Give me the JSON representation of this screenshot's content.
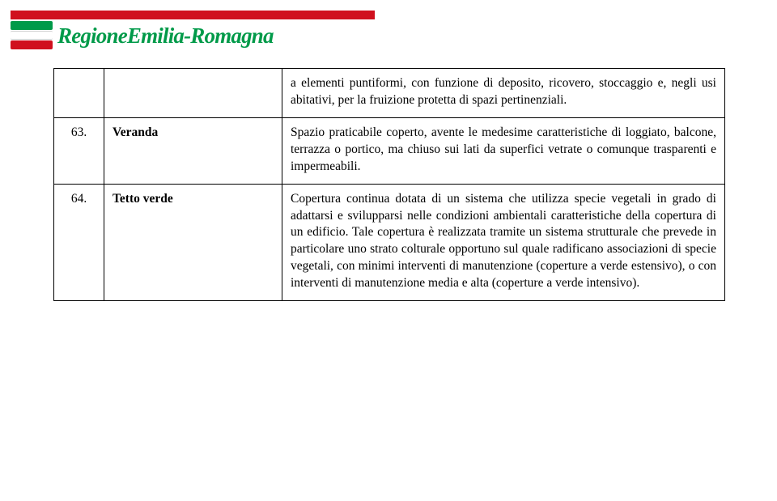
{
  "logo": {
    "text": "RegioneEmilia-Romagna"
  },
  "colors": {
    "brand_red": "#d0101e",
    "brand_green": "#009a49",
    "white": "#ffffff",
    "black": "#000000"
  },
  "table": {
    "rows": [
      {
        "num": "",
        "term": "",
        "definition": "a elementi puntiformi, con funzione di deposito, ricovero, stoccaggio e, negli usi abitativi, per la fruizione protetta di spazi pertinenziali."
      },
      {
        "num": "63.",
        "term": "Veranda",
        "definition": "Spazio praticabile coperto, avente le medesime caratteristiche di loggiato, balcone, terrazza o portico, ma chiuso sui lati da superfici vetrate o comunque trasparenti e impermeabili."
      },
      {
        "num": "64.",
        "term": "Tetto verde",
        "definition": "Copertura continua dotata di un sistema che utilizza specie vegetali in grado di adattarsi e svilupparsi nelle condizioni ambientali caratteristiche della copertura di un edificio. Tale copertura è realizzata tramite un sistema strutturale che prevede in particolare uno strato colturale opportuno sul quale radificano associazioni di specie vegetali, con minimi interventi di manutenzione (coperture a verde estensivo), o con interventi di manutenzione media e alta (coperture a verde intensivo)."
      }
    ]
  }
}
